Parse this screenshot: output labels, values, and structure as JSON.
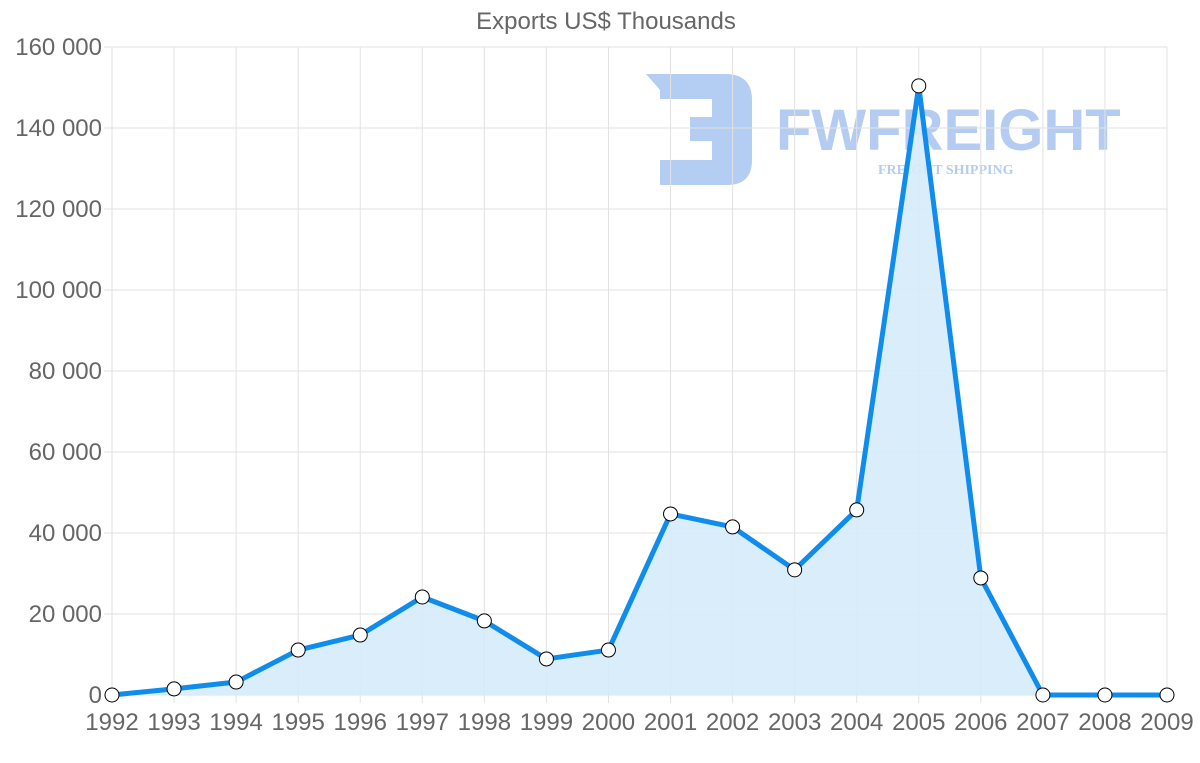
{
  "chart_data": {
    "type": "area",
    "title": "Exports US$ Thousands",
    "xlabel": "",
    "ylabel": "",
    "categories": [
      "1992",
      "1993",
      "1994",
      "1995",
      "1996",
      "1997",
      "1998",
      "1999",
      "2000",
      "2001",
      "2002",
      "2003",
      "2004",
      "2005",
      "2006",
      "2007",
      "2008",
      "2009"
    ],
    "series": [
      {
        "name": "Exports US$ Thousands",
        "values": [
          0,
          1500,
          3200,
          11100,
          14800,
          24200,
          18300,
          8900,
          11100,
          44700,
          41500,
          30900,
          45700,
          150400,
          28900,
          0,
          0,
          0
        ],
        "line_color": "#0f8cec",
        "fill_color": "#d6ebfb",
        "point_fill": "#ffffff",
        "point_stroke": "#000000"
      }
    ],
    "ylim": [
      0,
      160000
    ],
    "y_ticks": [
      0,
      20000,
      40000,
      60000,
      80000,
      100000,
      120000,
      140000,
      160000
    ],
    "y_tick_labels": [
      "0",
      "20 000",
      "40 000",
      "60 000",
      "80 000",
      "100 000",
      "120 000",
      "140 000",
      "160 000"
    ],
    "grid": true,
    "legend": "none"
  },
  "watermark": {
    "brand": "FWFREIGHT",
    "tagline": "FREIGHT SHIPPING",
    "color": "#a7c4f0"
  }
}
